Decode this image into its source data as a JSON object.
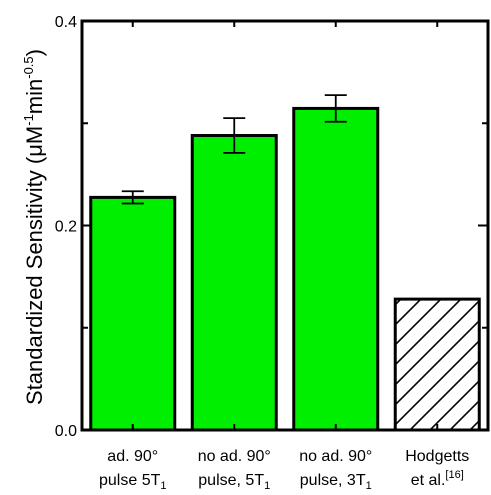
{
  "chart_data": {
    "type": "bar",
    "ylabel": "Standardized Sensitivity (μM",
    "ylabel_parts": {
      "text1": "Standardized Sensitivity (μM",
      "sup1": "-1",
      "text2": "min",
      "sup2": "-0.5",
      "text3": ")"
    },
    "ylim": [
      0.0,
      0.4
    ],
    "yticks": [
      {
        "value": 0.0,
        "label": "0.0"
      },
      {
        "value": 0.2,
        "label": "0.2"
      },
      {
        "value": 0.4,
        "label": "0.4"
      }
    ],
    "y_minor_ticks": [
      0.1,
      0.3
    ],
    "categories": [
      {
        "line1": "ad. 90°",
        "line2": "pulse 5T",
        "sub": "1",
        "sup": ""
      },
      {
        "line1": "no ad. 90°",
        "line2": "pulse, 5T",
        "sub": "1",
        "sup": ""
      },
      {
        "line1": "no ad. 90°",
        "line2": "pulse, 3T",
        "sub": "1",
        "sup": ""
      },
      {
        "line1": "Hodgetts",
        "line2": "et al.",
        "sub": "",
        "sup": "[16]"
      }
    ],
    "values": [
      0.2275,
      0.288,
      0.3145,
      0.128
    ],
    "errors": [
      0.006,
      0.017,
      0.013,
      null
    ],
    "fills": [
      "solid",
      "solid",
      "solid",
      "hatched"
    ],
    "grid": false,
    "legend": "none"
  },
  "colors": {
    "bar_fill": "#00ee00",
    "hatched_fill": "#ffffff",
    "stroke": "#000000"
  }
}
